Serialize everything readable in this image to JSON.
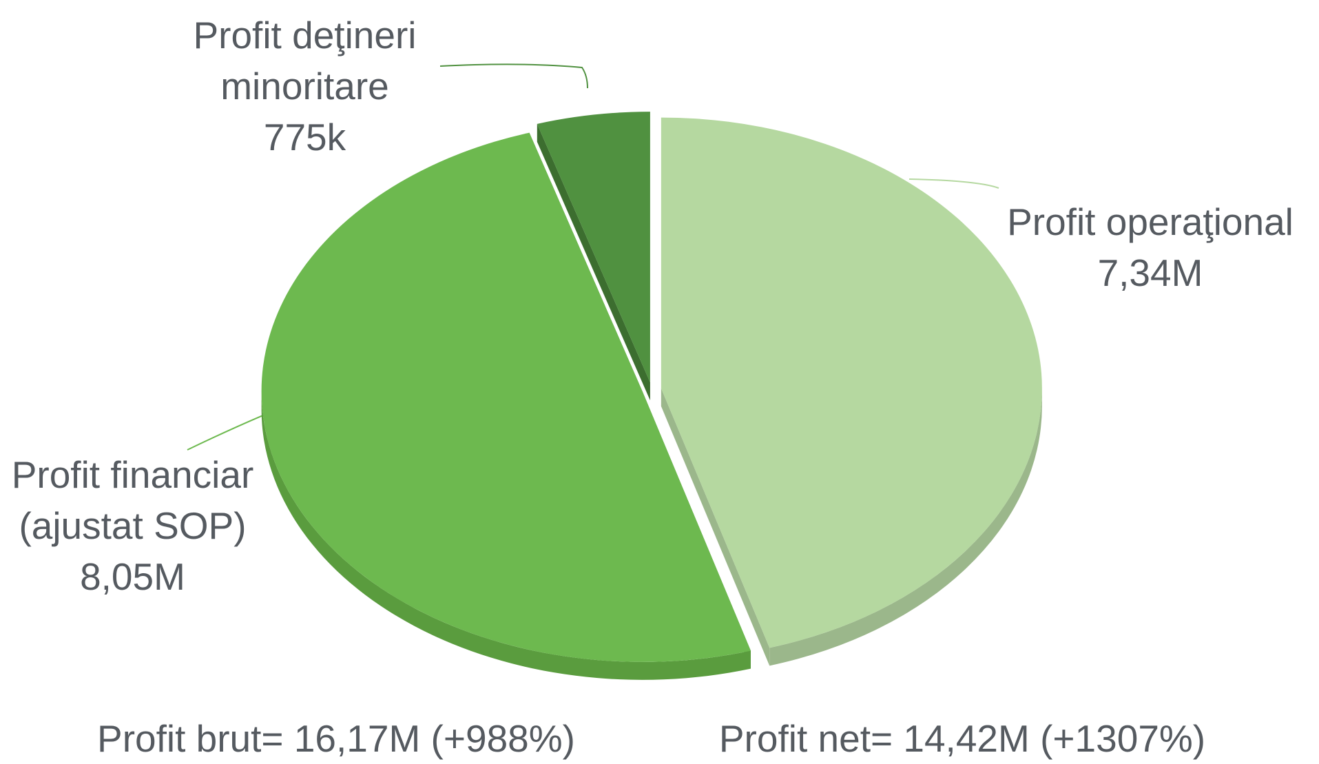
{
  "chart_data": {
    "type": "pie",
    "categories": [
      "Profit operaţional",
      "Profit financiar (ajustat SOP)",
      "Profit deţineri minoritare"
    ],
    "values": [
      7340000,
      8050000,
      775000
    ],
    "value_labels": [
      "7,34M",
      "8,05M",
      "775k"
    ],
    "colors": [
      "#b5d8a0",
      "#6db94f",
      "#509140"
    ],
    "side_colors": [
      "#9bb78b",
      "#5a9c3e",
      "#3c6e2f"
    ],
    "annotations": [
      "Profit brut= 16,17M (+988%)",
      "Profit net= 14,42M (+1307%)"
    ]
  }
}
